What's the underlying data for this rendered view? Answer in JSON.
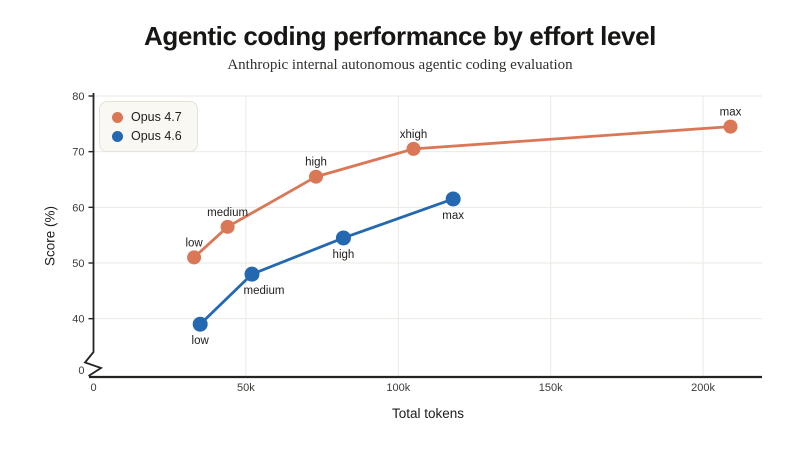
{
  "header": {
    "title": "Agentic coding performance by effort level",
    "subtitle": "Anthropic internal autonomous agentic coding evaluation"
  },
  "chart_data": {
    "type": "line",
    "title": "Agentic coding performance by effort level",
    "subtitle": "Anthropic internal autonomous agentic coding evaluation",
    "xlabel": "Total tokens",
    "ylabel": "Score (%)",
    "grid": true,
    "legend_position": "top-left",
    "x_axis": {
      "ticks": [
        {
          "value": 0,
          "label": "0"
        },
        {
          "value": 50000,
          "label": "50k"
        },
        {
          "value": 100000,
          "label": "100k"
        },
        {
          "value": 150000,
          "label": "150k"
        },
        {
          "value": 200000,
          "label": "200k"
        }
      ]
    },
    "y_axis": {
      "ticks": [
        {
          "value": 40,
          "label": "40"
        },
        {
          "value": 50,
          "label": "50"
        },
        {
          "value": 60,
          "label": "60"
        },
        {
          "value": 70,
          "label": "70"
        },
        {
          "value": 80,
          "label": "80"
        }
      ],
      "broken_axis": true,
      "zero_label": "0",
      "display_range": [
        40,
        80
      ]
    },
    "series": [
      {
        "name": "Opus 4.7",
        "color": "#d97757",
        "point_radius": 7,
        "label_side": "above",
        "points": [
          {
            "x": 33000,
            "y": 51,
            "label": "low"
          },
          {
            "x": 44000,
            "y": 56.5,
            "label": "medium"
          },
          {
            "x": 73000,
            "y": 65.5,
            "label": "high"
          },
          {
            "x": 105000,
            "y": 70.5,
            "label": "xhigh"
          },
          {
            "x": 209000,
            "y": 74.5,
            "label": "max"
          }
        ]
      },
      {
        "name": "Opus 4.6",
        "color": "#2368b0",
        "point_radius": 7.5,
        "label_side": "below",
        "points": [
          {
            "x": 35000,
            "y": 39,
            "label": "low"
          },
          {
            "x": 52000,
            "y": 48,
            "label": "medium",
            "label_dx": 12
          },
          {
            "x": 82000,
            "y": 54.5,
            "label": "high"
          },
          {
            "x": 118000,
            "y": 61.5,
            "label": "max"
          }
        ]
      }
    ]
  }
}
